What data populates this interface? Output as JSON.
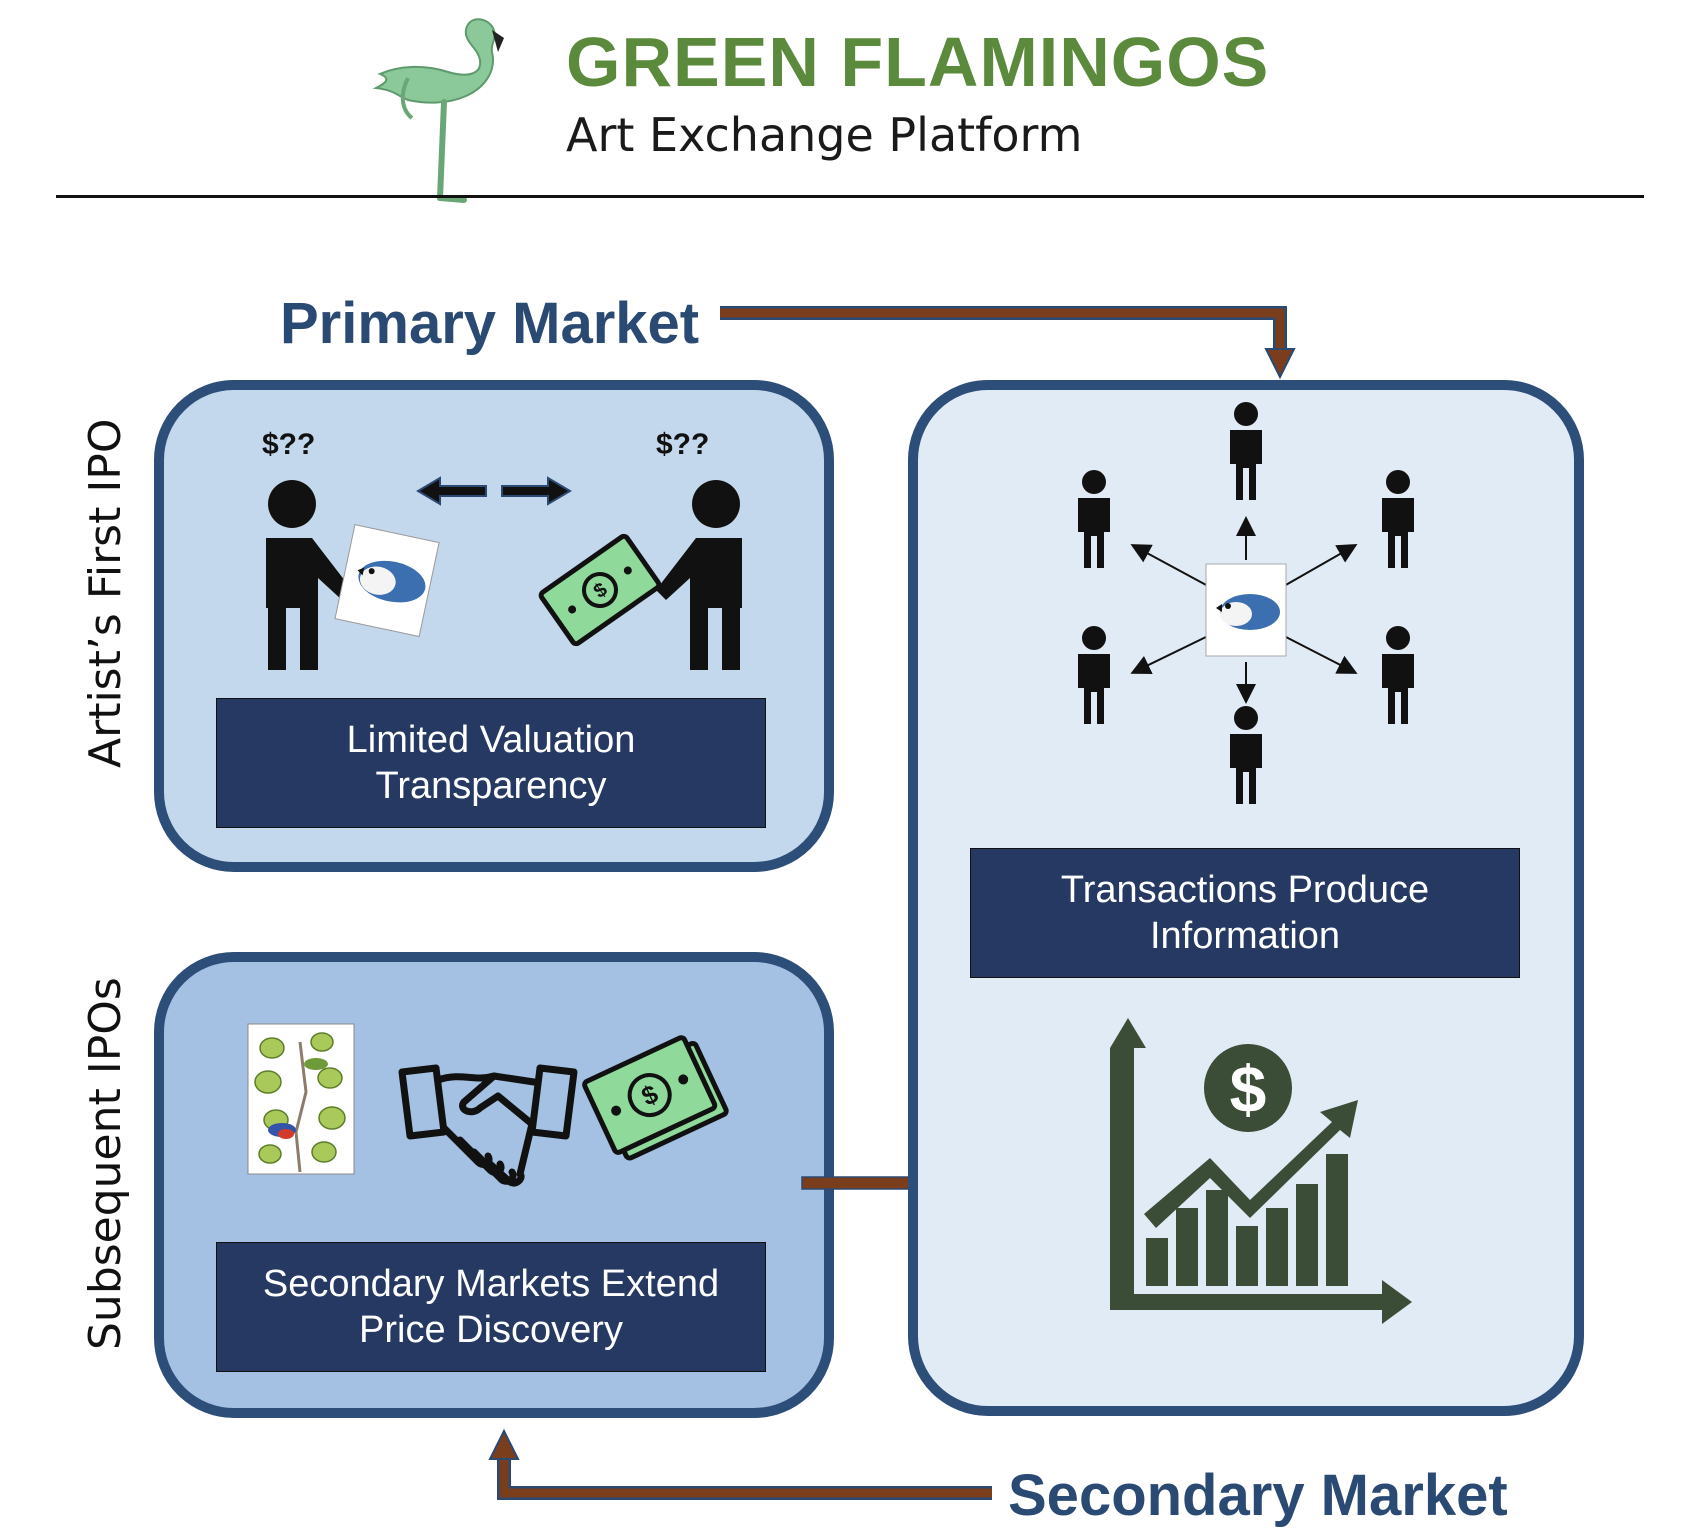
{
  "header": {
    "title": "GREEN FLAMINGOS",
    "subtitle": "Art Exchange Platform"
  },
  "markets": {
    "primary": "Primary Market",
    "secondary": "Secondary Market"
  },
  "side_labels": {
    "top": "Artist’s First IPO",
    "bottom": "Subsequent IPOs"
  },
  "panels": {
    "ipo": {
      "price_left": "$??",
      "price_right": "$??",
      "caption_line1": "Limited Valuation",
      "caption_line2": "Transparency"
    },
    "subsequent": {
      "caption_line1": "Secondary Markets Extend",
      "caption_line2": "Price Discovery"
    },
    "info": {
      "caption_line1": "Transactions Produce",
      "caption_line2": "Information"
    }
  },
  "colors": {
    "brand_green": "#5b8a3c",
    "market_blue": "#2b4a73",
    "panel_border": "#2d4e78",
    "caption_bg": "#253962",
    "arrow_brown": "#7a3e1d",
    "money_green": "#8fd99b",
    "chart_green": "#3b4d37"
  }
}
